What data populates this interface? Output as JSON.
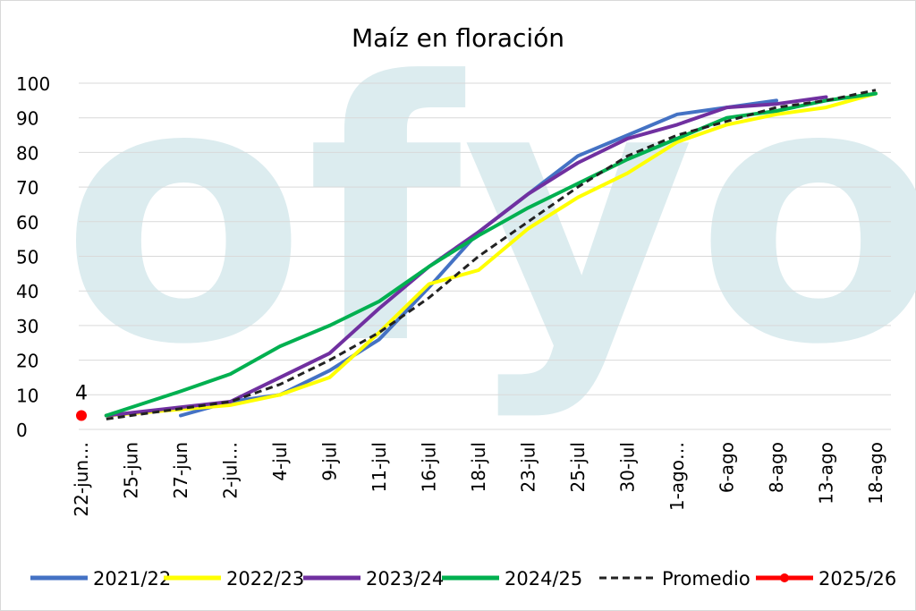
{
  "watermark": {
    "text": "ofyo",
    "color": "#dcecef"
  },
  "chart_data": {
    "type": "line",
    "title": "Maíz en floración",
    "xlabel": "",
    "ylabel": "",
    "ylim": [
      0,
      100
    ],
    "yticks": [
      0,
      10,
      20,
      30,
      40,
      50,
      60,
      70,
      80,
      90,
      100
    ],
    "grid": "horizontal",
    "legend_position": "bottom",
    "categories": [
      "22-jun…",
      "25-jun",
      "27-jun",
      "2-jul…",
      "4-jul",
      "9-jul",
      "11-jul",
      "16-jul",
      "18-jul",
      "23-jul",
      "25-jul",
      "30-jul",
      "1-ago…",
      "6-ago",
      "8-ago",
      "13-ago",
      "18-ago"
    ],
    "series": [
      {
        "name": "2021/22",
        "color": "#4472c4",
        "dashed": false,
        "marker": false,
        "points": [
          [
            2,
            4
          ],
          [
            3,
            8
          ],
          [
            4,
            10
          ],
          [
            5,
            17
          ],
          [
            6,
            26
          ],
          [
            7,
            41
          ],
          [
            8,
            57
          ],
          [
            9,
            68
          ],
          [
            10,
            79
          ],
          [
            11,
            85
          ],
          [
            12,
            91
          ],
          [
            13,
            93
          ],
          [
            14,
            95
          ]
        ]
      },
      {
        "name": "2022/23",
        "color": "#ffff00",
        "dashed": false,
        "marker": false,
        "points": [
          [
            0.5,
            4
          ],
          [
            3,
            7
          ],
          [
            4,
            10
          ],
          [
            5,
            15
          ],
          [
            6,
            28
          ],
          [
            7,
            42
          ],
          [
            8,
            46
          ],
          [
            9,
            58
          ],
          [
            10,
            67
          ],
          [
            11,
            74
          ],
          [
            12,
            83
          ],
          [
            13,
            88
          ],
          [
            14,
            91
          ],
          [
            15,
            93
          ],
          [
            16,
            97
          ]
        ]
      },
      {
        "name": "2023/24",
        "color": "#7030a0",
        "dashed": false,
        "marker": false,
        "points": [
          [
            0.5,
            4
          ],
          [
            3,
            8
          ],
          [
            4,
            15
          ],
          [
            5,
            22
          ],
          [
            6,
            35
          ],
          [
            7,
            47
          ],
          [
            8,
            57
          ],
          [
            9,
            68
          ],
          [
            10,
            77
          ],
          [
            11,
            84
          ],
          [
            12,
            88
          ],
          [
            13,
            93
          ],
          [
            14,
            94
          ],
          [
            15,
            96
          ]
        ]
      },
      {
        "name": "2024/25",
        "color": "#00b050",
        "dashed": false,
        "marker": false,
        "points": [
          [
            0.5,
            4
          ],
          [
            2,
            11
          ],
          [
            3,
            16
          ],
          [
            4,
            24
          ],
          [
            5,
            30
          ],
          [
            6,
            37
          ],
          [
            7,
            47
          ],
          [
            8,
            56
          ],
          [
            9,
            64
          ],
          [
            10,
            71
          ],
          [
            11,
            78
          ],
          [
            12,
            84
          ],
          [
            13,
            90
          ],
          [
            14,
            92
          ],
          [
            15,
            95
          ],
          [
            16,
            97
          ]
        ]
      },
      {
        "name": "Promedio",
        "color": "#222222",
        "dashed": true,
        "marker": false,
        "points": [
          [
            0.5,
            3
          ],
          [
            1,
            4
          ],
          [
            2,
            6
          ],
          [
            3,
            8
          ],
          [
            4,
            13
          ],
          [
            5,
            20
          ],
          [
            6,
            28
          ],
          [
            7,
            38
          ],
          [
            8,
            50
          ],
          [
            9,
            60
          ],
          [
            10,
            70
          ],
          [
            11,
            79
          ],
          [
            12,
            85
          ],
          [
            13,
            89
          ],
          [
            14,
            93
          ],
          [
            15,
            95
          ],
          [
            16,
            98
          ]
        ]
      },
      {
        "name": "2025/26",
        "color": "#ff0000",
        "dashed": false,
        "marker": true,
        "points": [
          [
            0,
            4
          ]
        ],
        "data_label": "4"
      }
    ]
  }
}
